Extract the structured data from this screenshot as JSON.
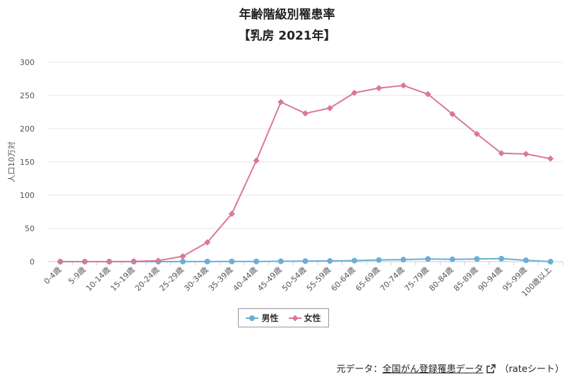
{
  "title": "年齢階級別罹患率",
  "subtitle": "【乳房 2021年】",
  "legend": {
    "male_label": "男性",
    "female_label": "女性"
  },
  "source": {
    "prefix": "元データ：",
    "link_text": "全国がん登録罹患データ",
    "suffix": "（rateシート）"
  },
  "chart_data": {
    "type": "line",
    "title": "年齢階級別罹患率",
    "subtitle": "【乳房 2021年】",
    "ylabel": "人口10万対",
    "ylim": [
      0,
      300
    ],
    "yticks": [
      0,
      50,
      100,
      150,
      200,
      250,
      300
    ],
    "grid": true,
    "legend_position": "bottom",
    "categories": [
      "0-4歳",
      "5-9歳",
      "10-14歳",
      "15-19歳",
      "20-24歳",
      "25-29歳",
      "30-34歳",
      "35-39歳",
      "40-44歳",
      "45-49歳",
      "50-54歳",
      "55-59歳",
      "60-64歳",
      "65-69歳",
      "70-74歳",
      "75-79歳",
      "80-84歳",
      "85-89歳",
      "90-94歳",
      "95-99歳",
      "100歳以上"
    ],
    "series": [
      {
        "name": "男性",
        "color": "#6baed6",
        "marker": "circle",
        "values": [
          0,
          0,
          0,
          0,
          0,
          0.1,
          0.1,
          0.2,
          0.3,
          0.5,
          0.8,
          1,
          1.5,
          2.5,
          3,
          4,
          3.5,
          4,
          4.5,
          2,
          0
        ]
      },
      {
        "name": "女性",
        "color": "#d9779b",
        "marker": "diamond",
        "values": [
          0,
          0,
          0,
          0.3,
          1.5,
          8,
          29,
          72,
          152,
          240,
          223,
          231,
          254,
          261,
          265,
          252,
          222,
          192,
          163,
          162,
          155
        ]
      }
    ]
  }
}
